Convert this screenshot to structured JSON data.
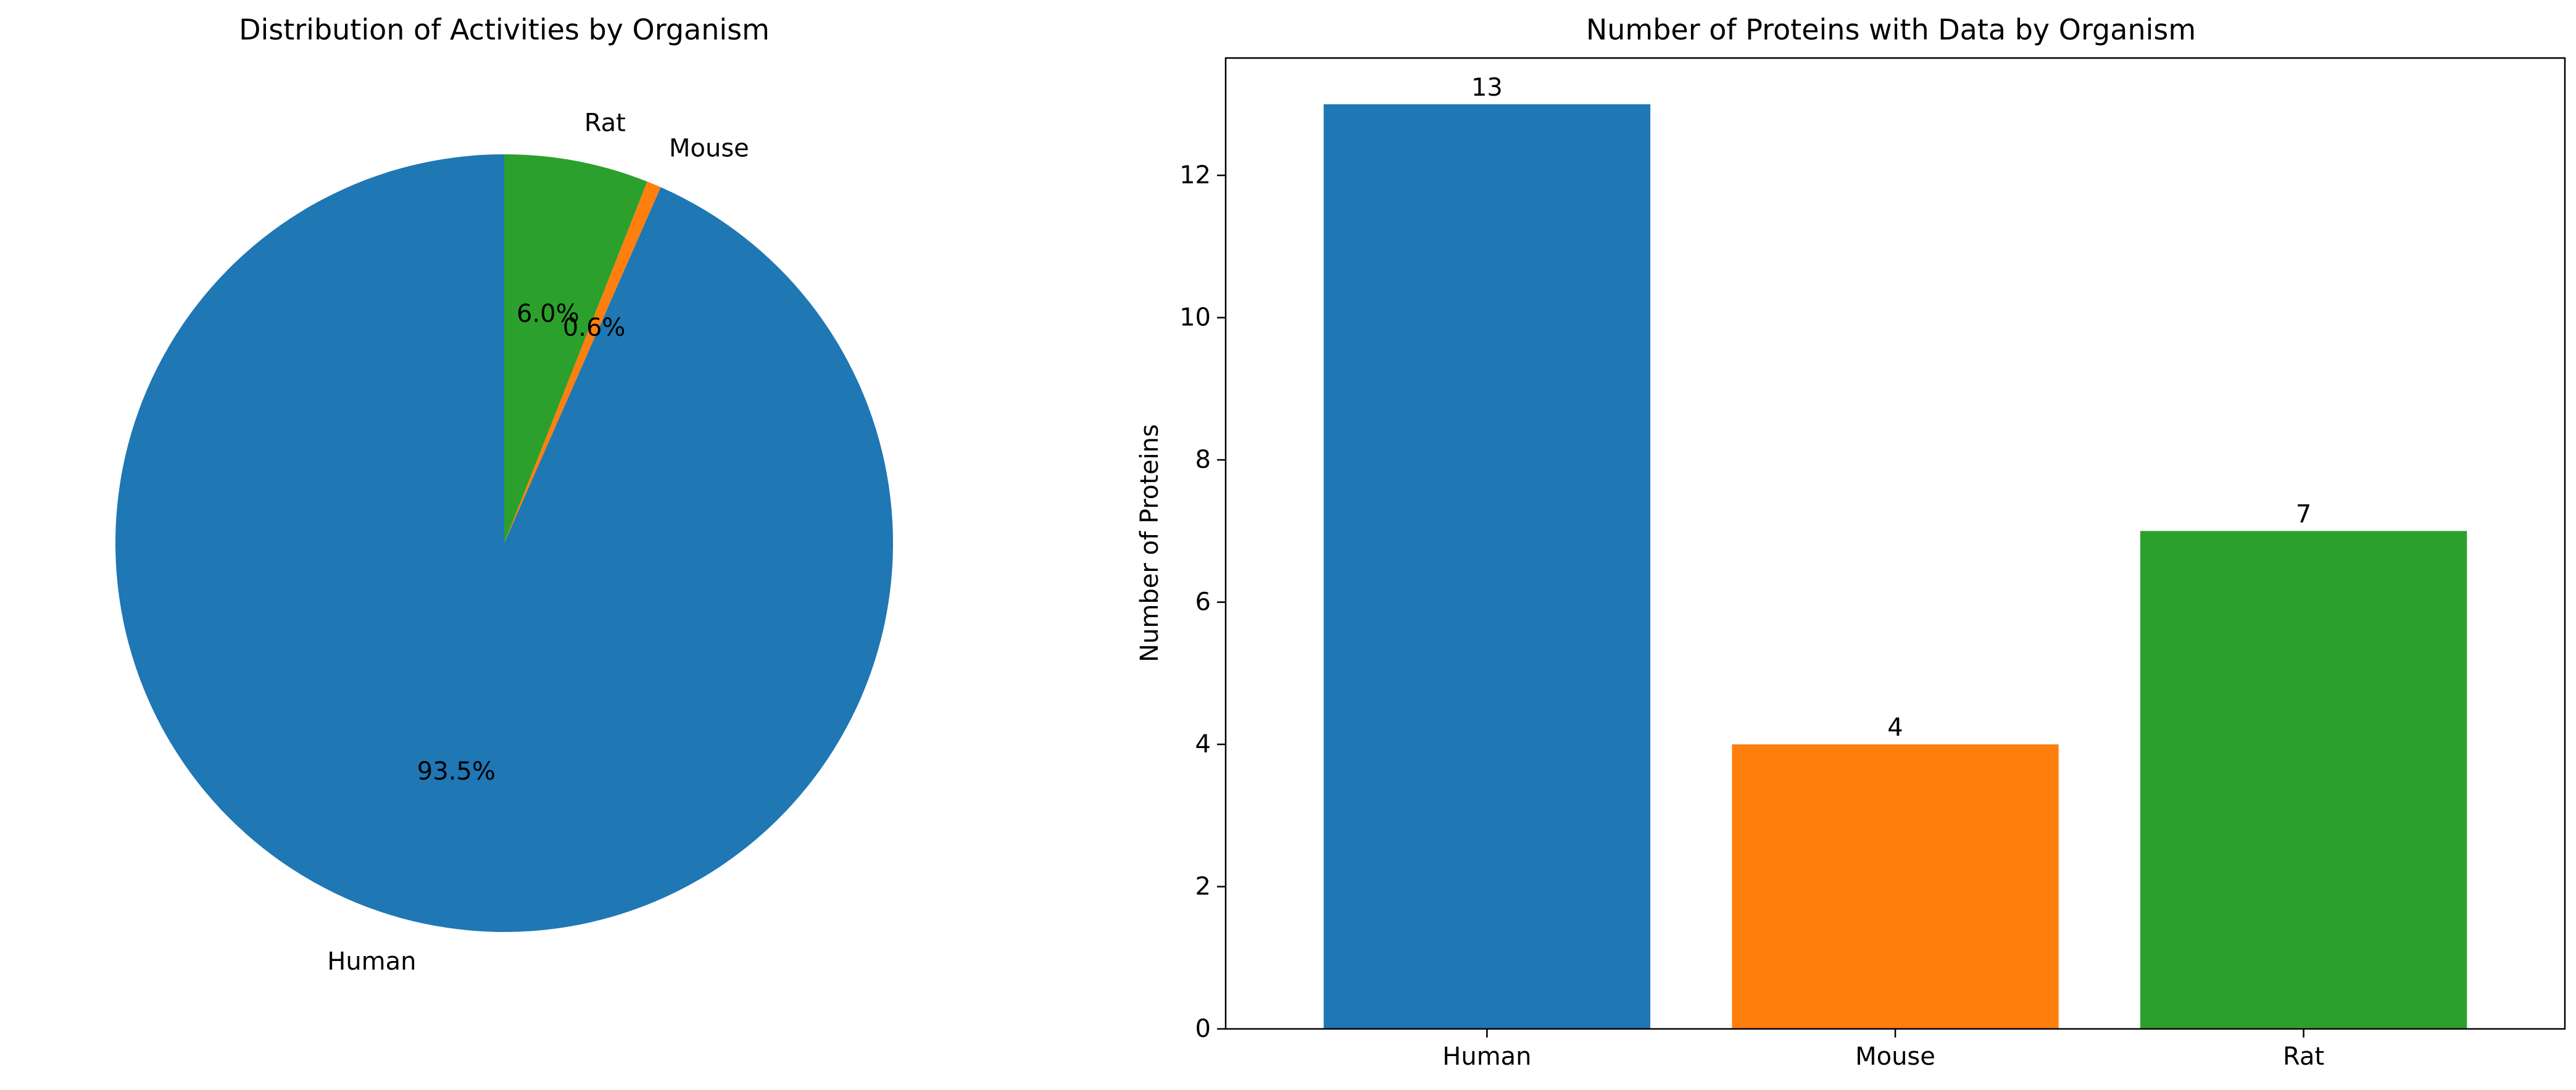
{
  "chart_data": [
    {
      "type": "pie",
      "title": "Distribution of Activities by Organism",
      "labels": [
        "Human",
        "Mouse",
        "Rat"
      ],
      "values": [
        93.5,
        0.6,
        6.0
      ],
      "pct_labels": [
        "93.5%",
        "0.6%",
        "6.0%"
      ],
      "colors": [
        "#1f77b4",
        "#ff7f0e",
        "#2ca02c"
      ],
      "start_angle_deg": 90,
      "direction": "counterclockwise"
    },
    {
      "type": "bar",
      "title": "Number of Proteins with Data by Organism",
      "categories": [
        "Human",
        "Mouse",
        "Rat"
      ],
      "values": [
        13,
        4,
        7
      ],
      "value_labels": [
        "13",
        "4",
        "7"
      ],
      "colors": [
        "#1f77b4",
        "#ff7f0e",
        "#2ca02c"
      ],
      "xlabel": "",
      "ylabel": "Number of Proteins",
      "ylim": [
        0,
        13.65
      ],
      "yticks": [
        0,
        2,
        4,
        6,
        8,
        10,
        12
      ],
      "ytick_labels": [
        "0",
        "2",
        "4",
        "6",
        "8",
        "10",
        "12"
      ],
      "grid": false
    }
  ]
}
